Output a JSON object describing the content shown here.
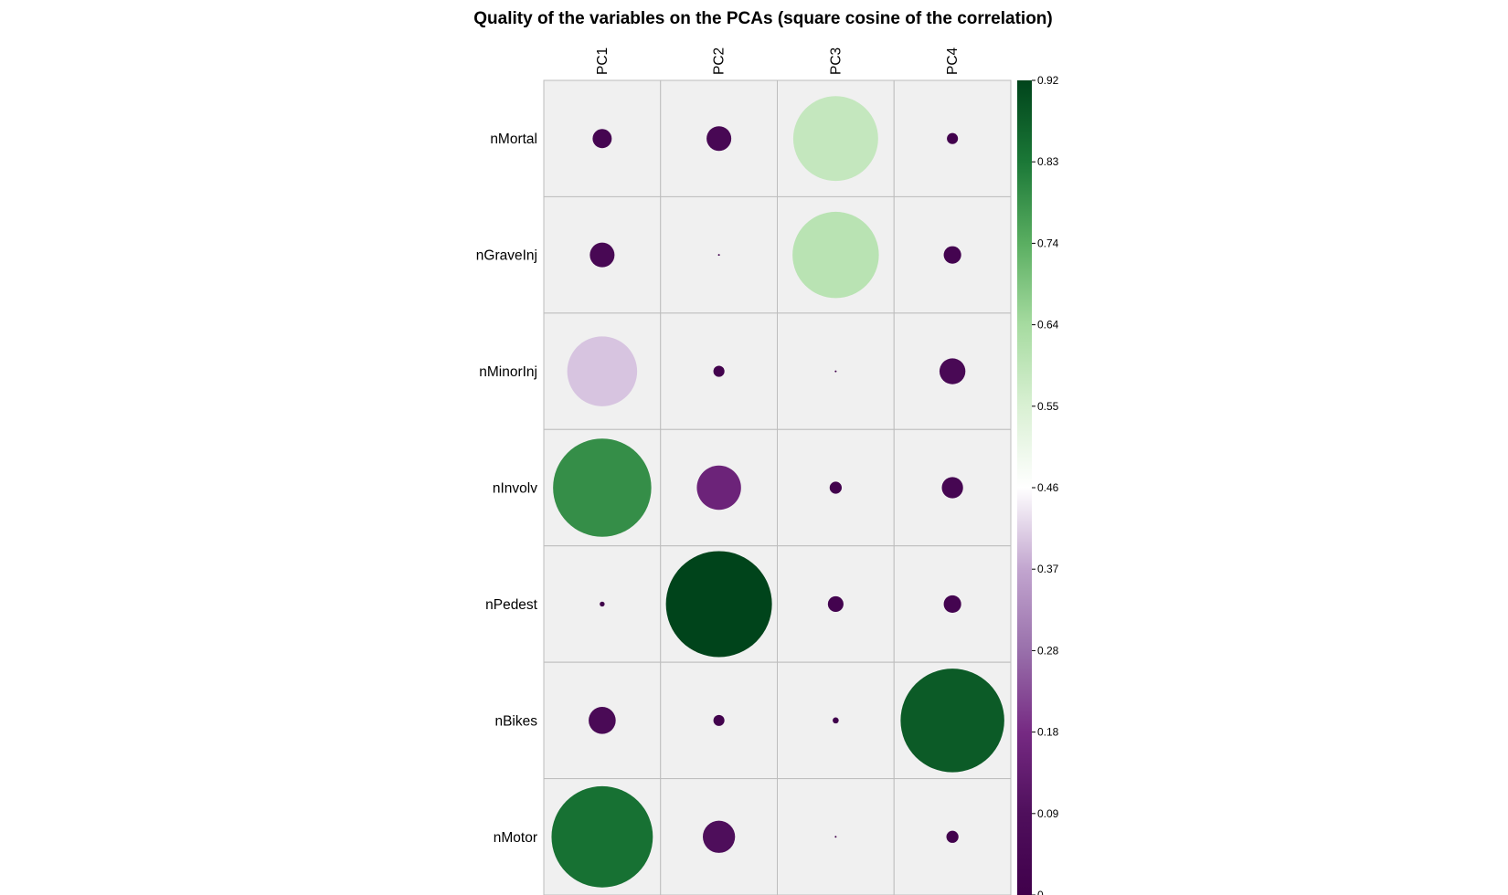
{
  "chart_data": {
    "type": "heatmap",
    "title": "Quality of the variables on the PCAs (square cosine of the correlation)",
    "columns": [
      "PC1",
      "PC2",
      "PC3",
      "PC4"
    ],
    "rows": [
      "nMortal",
      "nGraveInj",
      "nMinorInj",
      "nInvolv",
      "nPedest",
      "nBikes",
      "nMotor"
    ],
    "values": [
      [
        0.03,
        0.05,
        0.59,
        0.01
      ],
      [
        0.05,
        0.0,
        0.61,
        0.025
      ],
      [
        0.4,
        0.01,
        0.0,
        0.055
      ],
      [
        0.79,
        0.16,
        0.012,
        0.037
      ],
      [
        0.002,
        0.92,
        0.02,
        0.025
      ],
      [
        0.06,
        0.01,
        0.003,
        0.88
      ],
      [
        0.84,
        0.085,
        0.0,
        0.012
      ]
    ],
    "legend": {
      "min": 0,
      "max": 0.92,
      "ticks": [
        "0.92",
        "0.83",
        "0.74",
        "0.64",
        "0.55",
        "0.46",
        "0.37",
        "0.28",
        "0.18",
        "0.09",
        "0"
      ]
    },
    "colorscale": {
      "low": "#40004b",
      "mid": "#ffffff",
      "high": "#00441b"
    },
    "cell_background": "#f0f0f0",
    "grid_color": "#bdbdbd",
    "grid": true,
    "legend_position": "right"
  }
}
